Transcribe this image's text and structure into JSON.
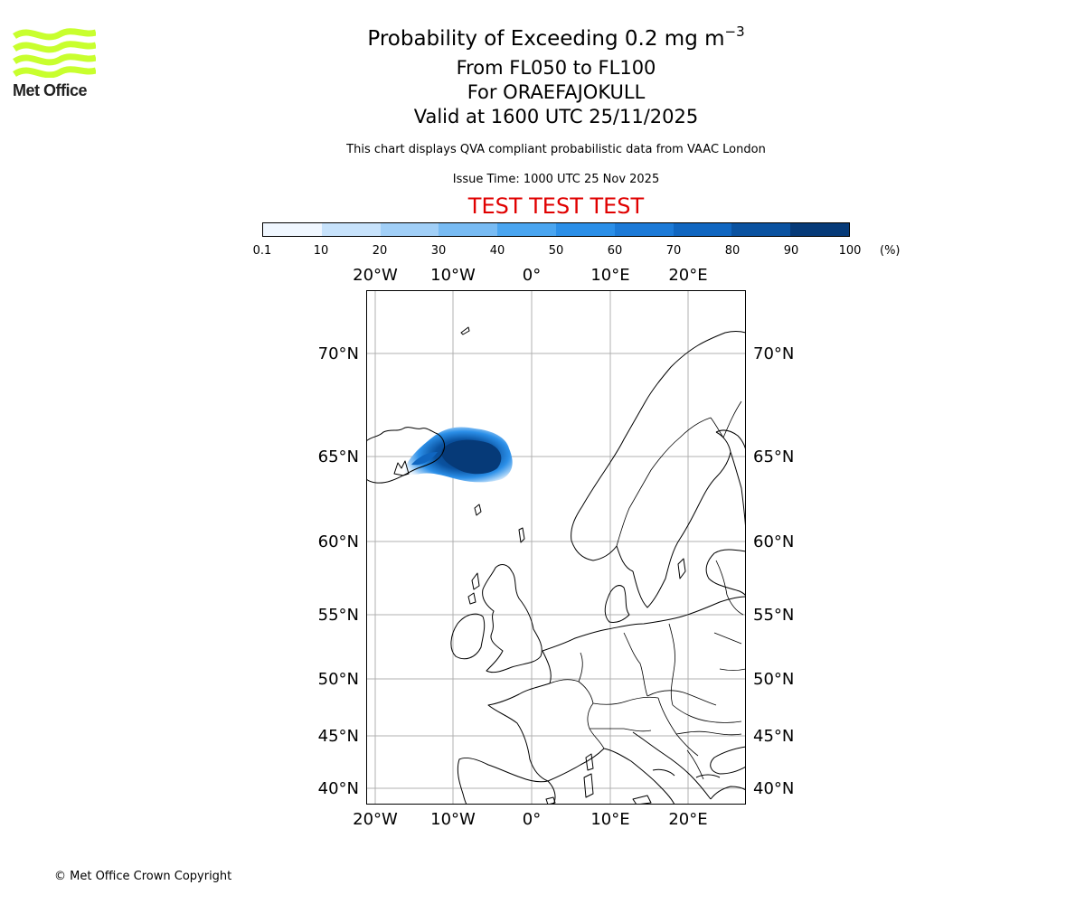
{
  "logo": {
    "text": "Met Office",
    "color": "#c8ff2e"
  },
  "title": {
    "line1_main": "Probability of Exceeding 0.2 mg m",
    "line1_sup": "−3",
    "line2": "From FL050 to FL100",
    "line3": "For ORAEFAJOKULL",
    "line4": "Valid at 1600 UTC 25/11/2025",
    "subtitle": "This chart displays QVA compliant probabilistic data from VAAC London",
    "issue_time": "Issue Time: 1000 UTC 25 Nov 2025",
    "test_banner": "TEST TEST TEST"
  },
  "colorbar": {
    "unit": "(%)",
    "ticks": [
      "0.1",
      "10",
      "20",
      "30",
      "40",
      "50",
      "60",
      "70",
      "80",
      "90",
      "100"
    ],
    "colors": [
      "#f0f7ff",
      "#c7e2fb",
      "#a1cff7",
      "#78bbf3",
      "#4aa5f0",
      "#2b8fe8",
      "#1c7ad7",
      "#1066c0",
      "#0a52a0",
      "#063a78"
    ]
  },
  "map": {
    "lon_labels": [
      "20°W",
      "10°W",
      "0°",
      "10°E",
      "20°E"
    ],
    "lat_labels": [
      "70°N",
      "65°N",
      "60°N",
      "55°N",
      "50°N",
      "45°N",
      "40°N"
    ],
    "extent": {
      "lon": [
        -21,
        27
      ],
      "lat": [
        39,
        73
      ]
    },
    "plume_color": "#063a78",
    "grid": true
  },
  "footer": {
    "copyright": "© Met Office Crown Copyright"
  }
}
